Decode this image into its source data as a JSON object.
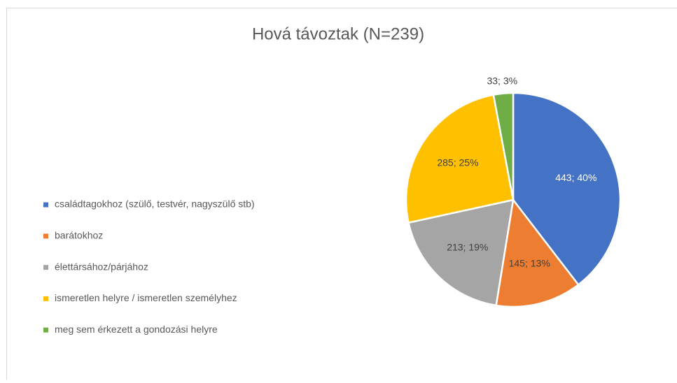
{
  "chart_data": {
    "type": "pie",
    "title": "Hová távoztak (N=239)",
    "categories": [
      "családtagokhoz (szülő, testvér, nagyszülő stb)",
      "barátokhoz",
      "élettársához/párjához",
      "ismeretlen helyre / ismeretlen személyhez",
      "meg sem érkezett a gondozási helyre"
    ],
    "values": [
      443,
      145,
      213,
      285,
      33
    ],
    "value_labels": [
      "443; 40%",
      "145; 13%",
      "213; 19%",
      "285; 25%",
      "33; 3%"
    ],
    "colors": [
      "#4472c4",
      "#ed7d31",
      "#a5a5a5",
      "#ffc000",
      "#70ad47"
    ],
    "legend": "left"
  }
}
